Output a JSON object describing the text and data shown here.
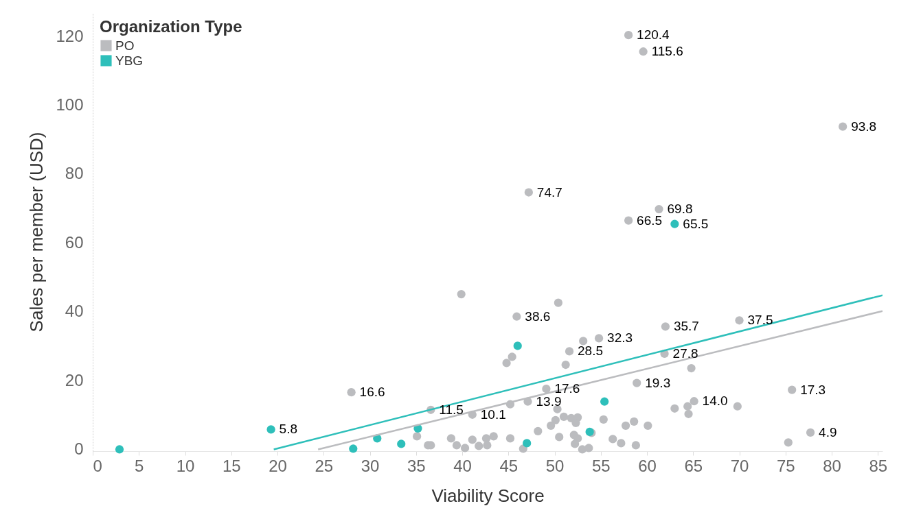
{
  "chart_data": {
    "type": "scatter",
    "xlabel": "Viability Score",
    "ylabel": "Sales per member (USD)",
    "legend_title": "Organization Type",
    "legend": "top left",
    "marker": "circle",
    "grid": false,
    "xlim": [
      0,
      85.5
    ],
    "xticks": [
      0,
      5,
      10,
      15,
      20,
      25,
      30,
      35,
      40,
      45,
      50,
      55,
      60,
      65,
      70,
      75,
      80,
      85
    ],
    "ylim": [
      -0.5,
      127
    ],
    "yticks": [
      0,
      20,
      40,
      60,
      80,
      100,
      120
    ],
    "series": [
      {
        "name": "PO",
        "color": "#bbbcbf",
        "x": [
          58.0,
          59.6,
          81.2,
          47.2,
          61.3,
          58.0,
          39.9,
          50.4,
          45.9,
          44.8,
          45.4,
          53.1,
          51.6,
          54.8,
          51.2,
          28.0,
          36.6,
          41.1,
          45.2,
          47.1,
          49.1,
          50.3,
          51.0,
          51.8,
          52.5,
          52.3,
          50.1,
          49.6,
          48.2,
          50.5,
          52.1,
          52.5,
          52.2,
          53.0,
          53.7,
          54.0,
          55.3,
          46.6,
          45.2,
          43.4,
          42.6,
          42.7,
          41.8,
          41.1,
          40.3,
          39.4,
          38.8,
          36.6,
          36.3,
          35.1,
          62.0,
          61.9,
          70.0,
          64.8,
          58.9,
          75.7,
          65.1,
          64.4,
          64.5,
          63.0,
          69.8,
          77.7,
          75.3,
          58.6,
          57.7,
          60.1,
          56.3,
          57.2,
          58.8
        ],
        "values": [
          120.4,
          115.6,
          93.8,
          74.7,
          69.8,
          66.5,
          45.1,
          42.6,
          38.6,
          25.1,
          26.9,
          31.5,
          28.5,
          32.3,
          24.6,
          16.6,
          11.5,
          10.1,
          13.1,
          13.9,
          17.6,
          11.7,
          9.5,
          9.1,
          9.3,
          7.7,
          8.5,
          6.9,
          5.3,
          3.6,
          4.2,
          3.2,
          1.6,
          0,
          0.4,
          4.8,
          8.7,
          0.2,
          3.2,
          3.8,
          3.2,
          1.2,
          1.0,
          2.8,
          0.4,
          1.2,
          3.2,
          1.2,
          1.2,
          3.8,
          35.7,
          27.8,
          37.5,
          23.6,
          19.3,
          17.3,
          14.0,
          12.5,
          10.3,
          11.9,
          12.5,
          4.9,
          2.0,
          8.1,
          6.9,
          6.9,
          3.0,
          1.8,
          1.2
        ],
        "value_labels": [
          "120.4",
          "115.6",
          "93.8",
          "74.7",
          "69.8",
          "66.5",
          null,
          null,
          "38.6",
          null,
          null,
          null,
          "28.5",
          "32.3",
          null,
          "16.6",
          "11.5",
          "10.1",
          null,
          "13.9",
          "17.6",
          null,
          null,
          null,
          null,
          null,
          null,
          null,
          null,
          null,
          null,
          null,
          null,
          null,
          null,
          null,
          null,
          null,
          null,
          null,
          null,
          null,
          null,
          null,
          null,
          null,
          null,
          null,
          null,
          null,
          "35.7",
          "27.8",
          "37.5",
          null,
          "19.3",
          "17.3",
          "14.0",
          null,
          null,
          null,
          null,
          "4.9",
          null,
          null,
          null,
          null,
          null,
          null,
          null
        ]
      },
      {
        "name": "YBG",
        "color": "#2ebfba",
        "x": [
          2.9,
          19.3,
          28.2,
          30.8,
          33.4,
          35.2,
          46.0,
          47.0,
          55.4,
          53.8,
          63.0
        ],
        "values": [
          0,
          5.8,
          0.2,
          3.2,
          1.6,
          6.1,
          30.1,
          1.8,
          13.9,
          5.1,
          65.5
        ],
        "value_labels": [
          null,
          "5.8",
          null,
          null,
          null,
          null,
          null,
          null,
          null,
          null,
          "65.5"
        ]
      },
      {
        "type": "line",
        "color": "#2ebfba",
        "line_style": "solid",
        "marker": "none",
        "x": [
          19.6,
          85.5
        ],
        "values": [
          0,
          44.8
        ]
      },
      {
        "type": "line",
        "color": "#bbbcbf",
        "line_style": "solid",
        "marker": "none",
        "x": [
          24.4,
          85.5
        ],
        "values": [
          0,
          40.2
        ]
      }
    ]
  }
}
